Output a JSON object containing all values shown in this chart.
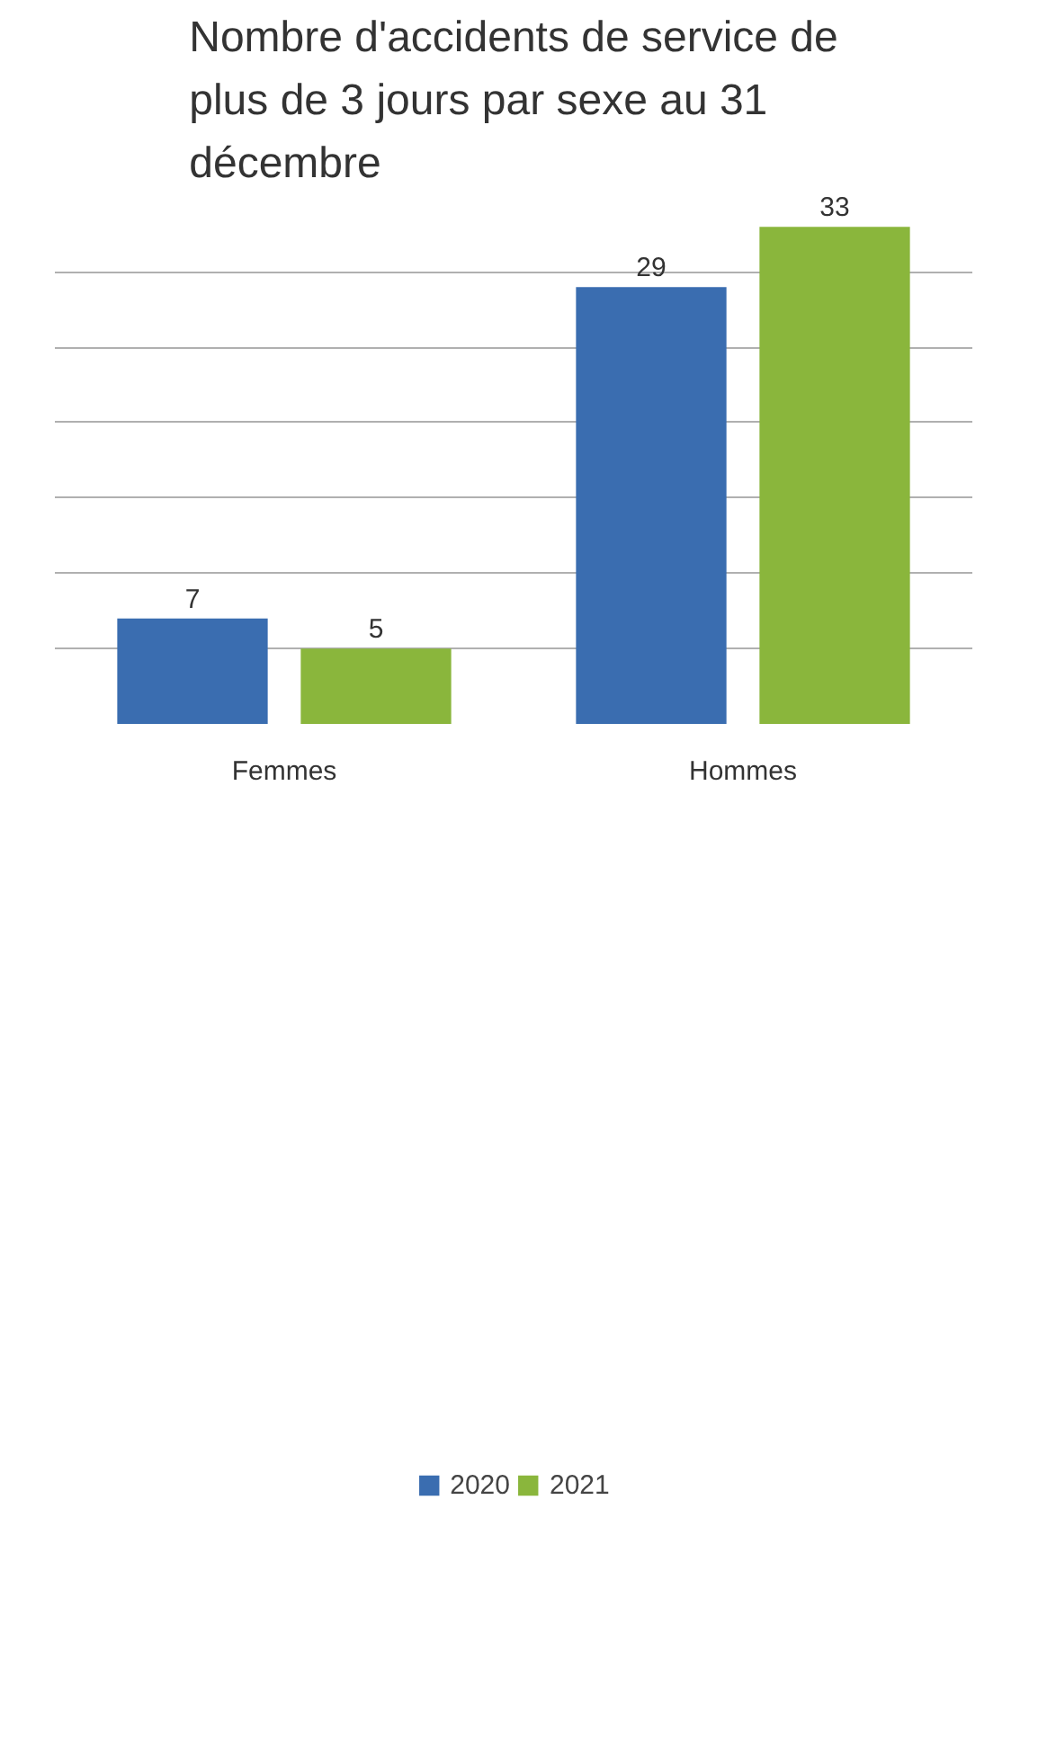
{
  "chart_data": {
    "type": "bar",
    "title": "Nombre d'accidents de service de plus de 3 jours par sexe au 31 décembre",
    "categories": [
      "Femmes",
      "Hommes"
    ],
    "series": [
      {
        "name": "2020",
        "color": "#3a6db0",
        "values": [
          7,
          29
        ]
      },
      {
        "name": "2021",
        "color": "#8ab63c",
        "values": [
          5,
          33
        ]
      }
    ],
    "grid": "y",
    "tick_labels": "x",
    "data_labels": true,
    "legend": "bottom"
  }
}
